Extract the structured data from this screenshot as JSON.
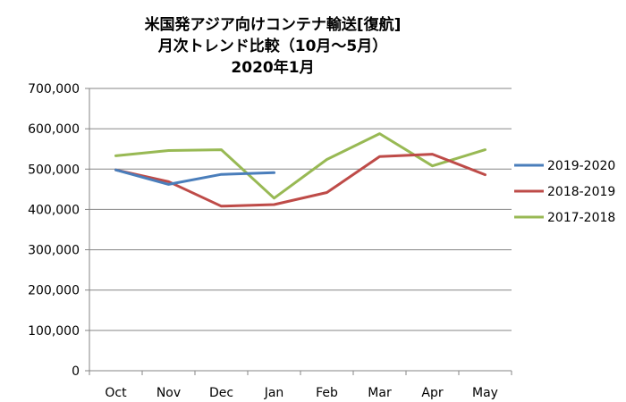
{
  "chart_data": {
    "type": "line",
    "title_lines": [
      "米国発アジア向けコンテナ輸送[復航]",
      "月次トレンド比較（10月～5月）",
      "2020年1月"
    ],
    "categories": [
      "Oct",
      "Nov",
      "Dec",
      "Jan",
      "Feb",
      "Mar",
      "Apr",
      "May"
    ],
    "ylim": [
      0,
      700000
    ],
    "y_ticks": [
      0,
      100000,
      200000,
      300000,
      400000,
      500000,
      600000,
      700000
    ],
    "y_tick_labels": [
      "0",
      "100,000",
      "200,000",
      "300,000",
      "400,000",
      "500,000",
      "600,000",
      "700,000"
    ],
    "grid": true,
    "legend_position": "right",
    "series": [
      {
        "name": "2019-2020",
        "color": "#4a7ebb",
        "values": [
          498000,
          462000,
          487000,
          491000,
          null,
          null,
          null,
          null
        ]
      },
      {
        "name": "2018-2019",
        "color": "#be4b48",
        "values": [
          498000,
          469000,
          408000,
          412000,
          442000,
          531000,
          537000,
          486000
        ]
      },
      {
        "name": "2017-2018",
        "color": "#98b954",
        "values": [
          533000,
          546000,
          548000,
          428000,
          524000,
          588000,
          508000,
          548000
        ]
      }
    ]
  }
}
